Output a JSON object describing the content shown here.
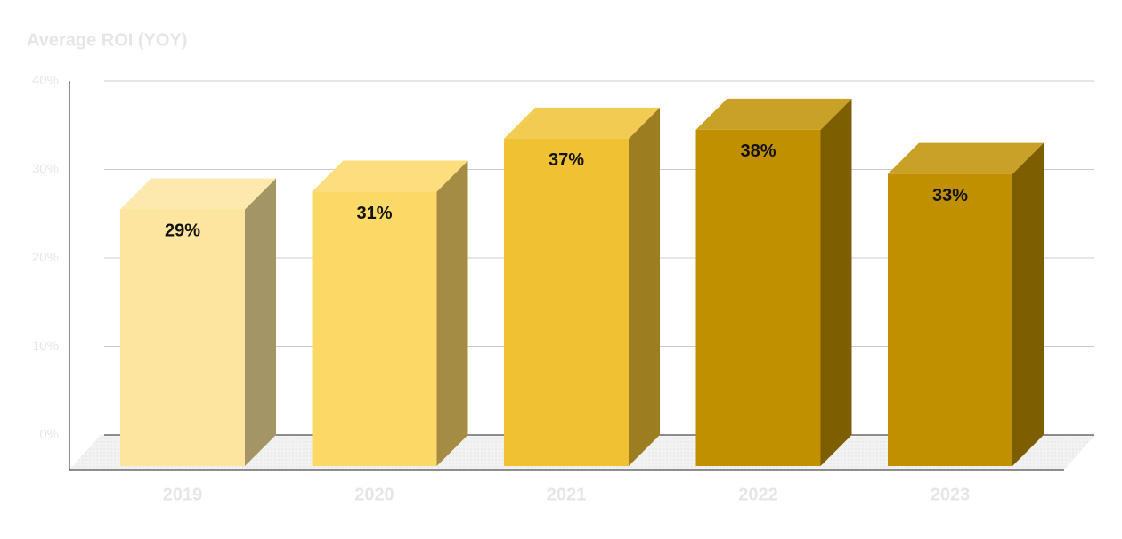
{
  "chart_data": {
    "type": "bar3d",
    "title": "Average ROI (YOY)",
    "categories": [
      "2019",
      "2020",
      "2021",
      "2022",
      "2023"
    ],
    "values": [
      29,
      31,
      37,
      38,
      33
    ],
    "value_labels": [
      "29%",
      "31%",
      "37%",
      "38%",
      "33%"
    ],
    "colors": [
      "#fde59f",
      "#fcd867",
      "#f0c233",
      "#c09000",
      "#c09000"
    ],
    "ylim": [
      0,
      40
    ],
    "yticks": [
      {
        "value": 0,
        "label": "0%"
      },
      {
        "value": 10,
        "label": "10%"
      },
      {
        "value": 20,
        "label": "20%"
      },
      {
        "value": 30,
        "label": "30%"
      },
      {
        "value": 40,
        "label": "40%"
      }
    ],
    "grid": true
  }
}
